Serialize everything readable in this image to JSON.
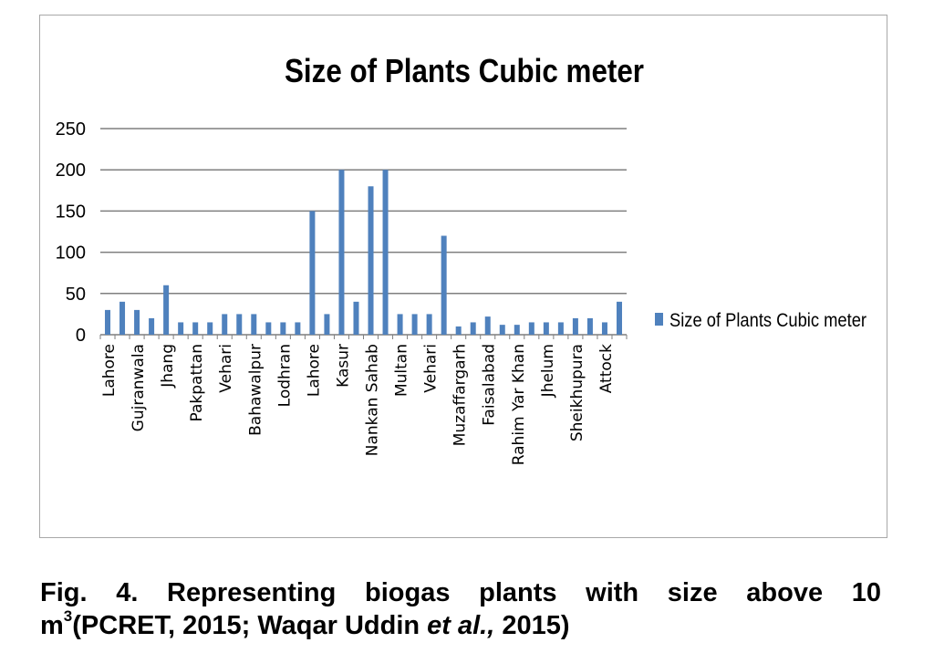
{
  "chart_data": {
    "type": "bar",
    "title": "Size of Plants Cubic meter",
    "xlabel": "",
    "ylabel": "",
    "ylim": [
      0,
      250
    ],
    "yticks": [
      0,
      50,
      100,
      150,
      200,
      250
    ],
    "grid": true,
    "legend_position": "right",
    "bar_color": "#4f81bd",
    "categories": [
      "Lahore",
      "",
      "Gujranwala",
      "",
      "Jhang",
      "",
      "Pakpattan",
      "",
      "Vehari",
      "",
      "Bahawalpur",
      "",
      "Lodhran",
      "",
      "Lahore",
      "",
      "Kasur",
      "",
      "Nankan Sahab",
      "",
      "Multan",
      "",
      "Vehari",
      "",
      "Muzaffargarh",
      "",
      "Faisalabad",
      "",
      "Rahim Yar Khan",
      "",
      "Jhelum",
      "",
      "Sheikhupura",
      "",
      "Attock",
      ""
    ],
    "series": [
      {
        "name": "Size of Plants Cubic meter",
        "values": [
          30,
          40,
          30,
          20,
          60,
          15,
          15,
          15,
          25,
          25,
          25,
          15,
          15,
          15,
          150,
          25,
          200,
          40,
          180,
          200,
          25,
          25,
          25,
          120,
          10,
          15,
          22,
          12,
          12,
          15,
          15,
          15,
          20,
          20,
          15,
          40
        ]
      }
    ]
  },
  "caption": {
    "line1": "Fig. 4. Representing biogas plants with size above 10",
    "line2_prefix": "m",
    "line2_sup": "3",
    "line2_text": "(PCRET, 2015; Waqar Uddin ",
    "line2_italic": "et al.,",
    "line2_suffix": " 2015)"
  }
}
